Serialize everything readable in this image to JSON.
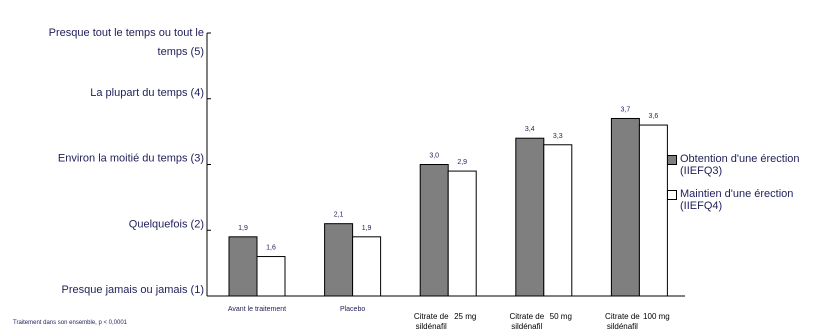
{
  "chart_data": {
    "type": "bar",
    "y_tick_labels": [
      {
        "value": 1,
        "lines": [
          "Presque jamais ou jamais (1)"
        ]
      },
      {
        "value": 2,
        "lines": [
          "Quelquefois (2)"
        ]
      },
      {
        "value": 3,
        "lines": [
          "Environ la moitié du temps (3)"
        ]
      },
      {
        "value": 4,
        "lines": [
          "La plupart du temps (4)"
        ]
      },
      {
        "value": 5,
        "lines": [
          "Presque tout le temps ou tout le",
          "temps (5)"
        ]
      }
    ],
    "ylim": [
      1,
      5
    ],
    "categories": [
      {
        "lines": [
          "Avant le traitement"
        ],
        "dose": ""
      },
      {
        "lines": [
          "Placebo"
        ],
        "dose": ""
      },
      {
        "lines": [
          "Citrate de",
          "sildénafil"
        ],
        "dose": "25 mg"
      },
      {
        "lines": [
          "Citrate de",
          "sildénafil"
        ],
        "dose": "50 mg"
      },
      {
        "lines": [
          "Citrate de",
          "sildénafil"
        ],
        "dose": "100 mg"
      }
    ],
    "series": [
      {
        "name": "Obtention d'une érection (IIEFQ3)",
        "color": "#7f7f7f",
        "values": [
          1.9,
          2.1,
          3.0,
          3.4,
          3.7
        ],
        "labels": [
          "1,9",
          "2,1",
          "3,0",
          "3,4",
          "3,7"
        ]
      },
      {
        "name": "Maintien d'une érection (IIEFQ4)",
        "color": "#ffffff",
        "values": [
          1.6,
          1.9,
          2.9,
          3.3,
          3.6
        ],
        "labels": [
          "1,6",
          "1,9",
          "2,9",
          "3,3",
          "3,6"
        ]
      }
    ],
    "legend_position": "right",
    "grid": false
  },
  "legend": [
    {
      "line1": "Obtention d'une érection",
      "line2": "(IIEFQ3)",
      "color": "#7f7f7f"
    },
    {
      "line1": "Maintien d'une érection",
      "line2": "(IIEFQ4)",
      "color": "#ffffff"
    }
  ],
  "footnote": "Traitement dans son ensemble, p < 0,0001"
}
